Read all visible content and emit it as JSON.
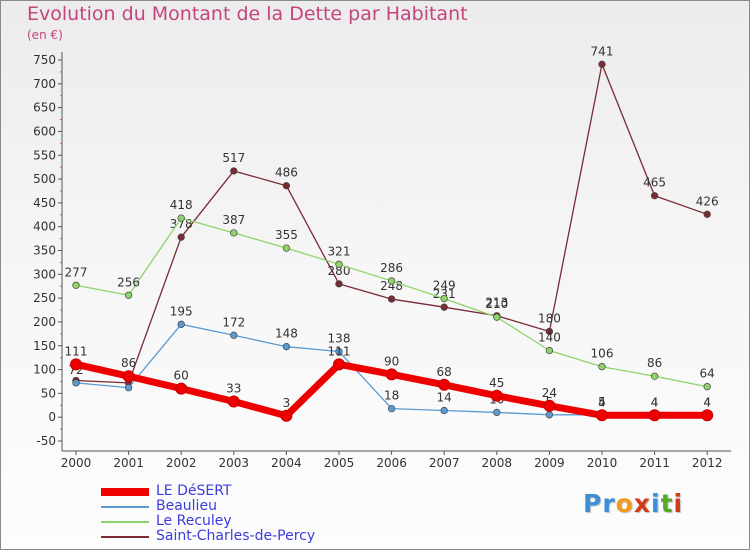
{
  "header": {
    "title": "Evolution du Montant de la Dette par Habitant",
    "subtitle": "(en €)"
  },
  "chart_data": {
    "type": "line",
    "title": "Evolution du Montant de la Dette par Habitant",
    "ylabel": "(en €)",
    "xlabel": "",
    "x": [
      "2000",
      "2001",
      "2002",
      "2003",
      "2004",
      "2005",
      "2006",
      "2007",
      "2008",
      "2009",
      "2010",
      "2011",
      "2012"
    ],
    "ylim": [
      -50,
      750
    ],
    "yticks": [
      -50,
      0,
      50,
      100,
      150,
      200,
      250,
      300,
      350,
      400,
      450,
      500,
      550,
      600,
      650,
      700,
      750
    ],
    "grid": false,
    "legend_position": "bottom-left",
    "series": [
      {
        "name": "Saint-Charles-de-Percy",
        "color": "#7a2a32",
        "values": [
          77,
          72,
          378,
          517,
          486,
          280,
          248,
          231,
          213,
          180,
          741,
          465,
          426
        ],
        "labels": [
          "",
          "",
          "378",
          "517",
          "486",
          "280",
          "248",
          "231",
          "213",
          "180",
          "741",
          "465",
          "426"
        ]
      },
      {
        "name": "Le Reculey",
        "color": "#8fd46a",
        "values": [
          277,
          256,
          418,
          387,
          355,
          321,
          286,
          249,
          210,
          140,
          106,
          86,
          64
        ],
        "labels": [
          "277",
          "256",
          "418",
          "387",
          "355",
          "321",
          "286",
          "249",
          "210",
          "140",
          "106",
          "86",
          "64"
        ]
      },
      {
        "name": "Beaulieu",
        "color": "#5b9bd1",
        "values": [
          72,
          62,
          195,
          172,
          148,
          138,
          18,
          14,
          10,
          5,
          5,
          4,
          4
        ],
        "labels": [
          "72",
          "",
          "195",
          "172",
          "148",
          "138",
          "18",
          "14",
          "10",
          "5",
          "5",
          "4",
          "4"
        ]
      },
      {
        "name": "LE DéSERT",
        "color": "#ee0000",
        "values": [
          111,
          86,
          60,
          33,
          3,
          111,
          90,
          68,
          45,
          24,
          4,
          4,
          4
        ],
        "labels": [
          "111",
          "86",
          "60",
          "33",
          "3",
          "111",
          "90",
          "68",
          "45",
          "24",
          "4",
          "4",
          "4"
        ]
      }
    ]
  },
  "legend": {
    "items": [
      {
        "label": "LE DéSERT",
        "color": "#ee0000"
      },
      {
        "label": "Beaulieu",
        "color": "#5b9bd1"
      },
      {
        "label": "Le Reculey",
        "color": "#8fd46a"
      },
      {
        "label": "Saint-Charles-de-Percy",
        "color": "#7a2a32"
      }
    ]
  },
  "logo": {
    "letters": [
      "P",
      "r",
      "o",
      "x",
      "i",
      "t",
      "i"
    ],
    "colors": [
      "#3a8fd8",
      "#3a8fd8",
      "#f29a1a",
      "#d23a1a",
      "#3a8fd8",
      "#5aa72a",
      "#d23a1a"
    ]
  }
}
